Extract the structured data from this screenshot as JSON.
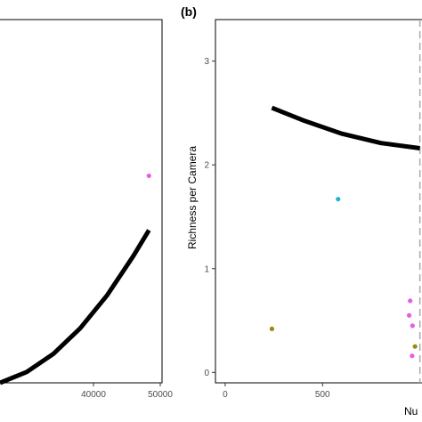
{
  "chart_data": [
    {
      "panel": "left",
      "type": "scatter",
      "xlim": [
        26000,
        50000
      ],
      "ylim": [
        0,
        1
      ],
      "x_ticks": [
        40000,
        50000
      ],
      "x_tick_labels": [
        "40000",
        "50000"
      ],
      "grid": false,
      "series": [
        {
          "kind": "points",
          "points": [
            {
              "x": 48300,
              "y": 0.57,
              "color": "#e75de3"
            }
          ]
        },
        {
          "kind": "fit-curve",
          "color": "#000000",
          "points": [
            {
              "x": 26000,
              "y": 0.0
            },
            {
              "x": 30000,
              "y": 0.03
            },
            {
              "x": 34000,
              "y": 0.08
            },
            {
              "x": 38000,
              "y": 0.15
            },
            {
              "x": 42000,
              "y": 0.24
            },
            {
              "x": 46000,
              "y": 0.35
            },
            {
              "x": 48300,
              "y": 0.42
            }
          ]
        }
      ]
    },
    {
      "panel": "right",
      "panel_letter": "(b)",
      "type": "scatter",
      "ylabel": "Richness per Camera",
      "xlabel_partial": "Nu",
      "xlim": [
        -50,
        1020
      ],
      "ylim": [
        -0.1,
        3.4
      ],
      "x_ticks": [
        0,
        500
      ],
      "x_tick_labels": [
        "0",
        "500"
      ],
      "y_ticks": [
        0,
        1,
        2,
        3
      ],
      "y_tick_labels": [
        "0",
        "1",
        "2",
        "3"
      ],
      "vline": {
        "x": 1000,
        "style": "dashed",
        "color": "#aaaaaa"
      },
      "grid": false,
      "series": [
        {
          "kind": "points",
          "points": [
            {
              "x": 580,
              "y": 1.67,
              "color": "#1fb4d6"
            },
            {
              "x": 240,
              "y": 0.42,
              "color": "#9a8a12"
            },
            {
              "x": 950,
              "y": 0.69,
              "color": "#e75de3"
            },
            {
              "x": 945,
              "y": 0.55,
              "color": "#e75de3"
            },
            {
              "x": 962,
              "y": 0.45,
              "color": "#e75de3"
            },
            {
              "x": 960,
              "y": 0.16,
              "color": "#e75de3"
            },
            {
              "x": 975,
              "y": 0.25,
              "color": "#9a8a12"
            }
          ]
        },
        {
          "kind": "fit-curve",
          "color": "#000000",
          "points": [
            {
              "x": 240,
              "y": 2.55
            },
            {
              "x": 400,
              "y": 2.43
            },
            {
              "x": 600,
              "y": 2.3
            },
            {
              "x": 800,
              "y": 2.21
            },
            {
              "x": 1000,
              "y": 2.16
            }
          ]
        }
      ]
    }
  ]
}
